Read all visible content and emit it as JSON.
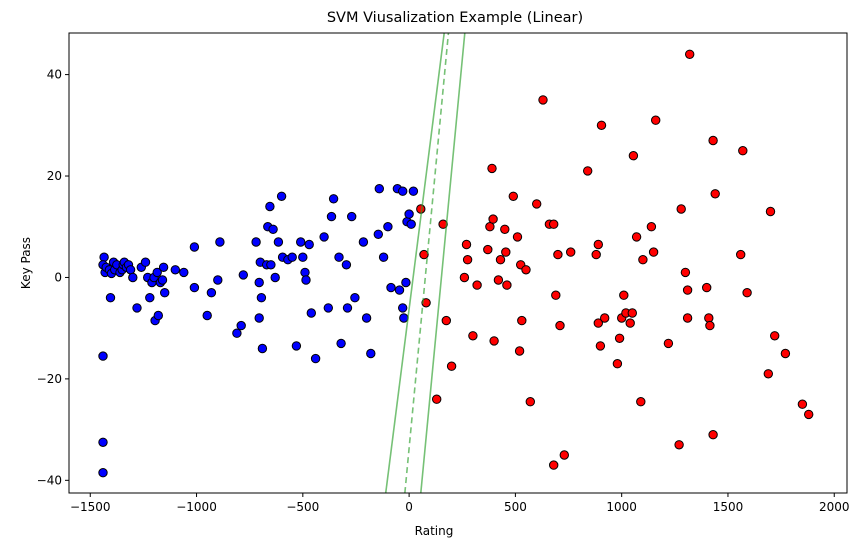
{
  "chart_data": {
    "type": "scatter",
    "title": "SVM Viusalization Example (Linear)",
    "xlabel": "Rating",
    "ylabel": "Key Pass",
    "xlim": [
      -1600,
      2060
    ],
    "ylim": [
      -42.5,
      48.2
    ],
    "xticks": [
      -1500,
      -1000,
      -500,
      0,
      500,
      1000,
      1500,
      2000
    ],
    "xtick_labels": [
      "−1500",
      "−1000",
      "−500",
      "0",
      "500",
      "1000",
      "1500",
      "2000"
    ],
    "yticks": [
      -40,
      -20,
      0,
      20,
      40
    ],
    "ytick_labels": [
      "−40",
      "−20",
      "0",
      "20",
      "40"
    ],
    "grid": false,
    "series": [
      {
        "color": "#0000ff",
        "points": [
          [
            -1435,
            4
          ],
          [
            -1440,
            2.5
          ],
          [
            -1430,
            1
          ],
          [
            -1425,
            2
          ],
          [
            -1410,
            1.5
          ],
          [
            -1400,
            0.8
          ],
          [
            -1390,
            3
          ],
          [
            -1385,
            1.5
          ],
          [
            -1375,
            2.5
          ],
          [
            -1360,
            1
          ],
          [
            -1350,
            1.5
          ],
          [
            -1345,
            2.5
          ],
          [
            -1340,
            3
          ],
          [
            -1330,
            2
          ],
          [
            -1320,
            2.5
          ],
          [
            -1310,
            1.5
          ],
          [
            -1300,
            0
          ],
          [
            -1280,
            -6
          ],
          [
            -1260,
            2
          ],
          [
            -1240,
            3
          ],
          [
            -1230,
            0
          ],
          [
            -1220,
            -4
          ],
          [
            -1210,
            -1
          ],
          [
            -1200,
            0
          ],
          [
            -1195,
            -8.5
          ],
          [
            -1185,
            1
          ],
          [
            -1180,
            -7.5
          ],
          [
            -1170,
            -1
          ],
          [
            -1160,
            -0.5
          ],
          [
            -1155,
            2
          ],
          [
            -1150,
            -3
          ],
          [
            -1405,
            -4
          ],
          [
            -1440,
            -15.5
          ],
          [
            -1440,
            -32.5
          ],
          [
            -1440,
            -38.5
          ],
          [
            -1100,
            1.5
          ],
          [
            -1060,
            1
          ],
          [
            -1010,
            6
          ],
          [
            -1010,
            -2
          ],
          [
            -950,
            -7.5
          ],
          [
            -930,
            -3
          ],
          [
            -900,
            -0.5
          ],
          [
            -890,
            7
          ],
          [
            -810,
            -11
          ],
          [
            -780,
            0.5
          ],
          [
            -790,
            -9.5
          ],
          [
            -720,
            7
          ],
          [
            -705,
            -8
          ],
          [
            -705,
            -1
          ],
          [
            -695,
            -4
          ],
          [
            -700,
            3
          ],
          [
            -690,
            -14
          ],
          [
            -670,
            2.5
          ],
          [
            -665,
            10
          ],
          [
            -655,
            14
          ],
          [
            -650,
            2.5
          ],
          [
            -640,
            9.5
          ],
          [
            -630,
            0
          ],
          [
            -615,
            7
          ],
          [
            -600,
            16
          ],
          [
            -595,
            4
          ],
          [
            -570,
            3.5
          ],
          [
            -550,
            4
          ],
          [
            -530,
            -13.5
          ],
          [
            -510,
            7
          ],
          [
            -500,
            4
          ],
          [
            -490,
            1
          ],
          [
            -485,
            -0.5
          ],
          [
            -470,
            6.5
          ],
          [
            -460,
            -7
          ],
          [
            -440,
            -16
          ],
          [
            -400,
            8
          ],
          [
            -380,
            -6
          ],
          [
            -365,
            12
          ],
          [
            -355,
            15.5
          ],
          [
            -330,
            4
          ],
          [
            -320,
            -13
          ],
          [
            -295,
            2.5
          ],
          [
            -290,
            -6
          ],
          [
            -270,
            12
          ],
          [
            -255,
            -4
          ],
          [
            -215,
            7
          ],
          [
            -200,
            -8
          ],
          [
            -180,
            -15
          ],
          [
            -145,
            8.5
          ],
          [
            -140,
            17.5
          ],
          [
            -120,
            4
          ],
          [
            -100,
            10
          ],
          [
            -85,
            -2
          ],
          [
            -55,
            17.5
          ],
          [
            -30,
            17
          ],
          [
            -30,
            -6
          ],
          [
            -25,
            -8
          ],
          [
            -15,
            -1
          ],
          [
            -10,
            11
          ],
          [
            0,
            12.5
          ],
          [
            10,
            10.5
          ],
          [
            20,
            17
          ],
          [
            -45,
            -2.5
          ]
        ]
      },
      {
        "color": "#ff0000",
        "points": [
          [
            55,
            13.5
          ],
          [
            70,
            4.5
          ],
          [
            80,
            -5
          ],
          [
            130,
            -24
          ],
          [
            160,
            10.5
          ],
          [
            175,
            -8.5
          ],
          [
            200,
            -17.5
          ],
          [
            260,
            0
          ],
          [
            270,
            6.5
          ],
          [
            275,
            3.5
          ],
          [
            300,
            -11.5
          ],
          [
            320,
            -1.5
          ],
          [
            370,
            5.5
          ],
          [
            380,
            10
          ],
          [
            390,
            21.5
          ],
          [
            395,
            11.5
          ],
          [
            400,
            -12.5
          ],
          [
            420,
            -0.5
          ],
          [
            430,
            3.5
          ],
          [
            450,
            9.5
          ],
          [
            455,
            5
          ],
          [
            460,
            -1.5
          ],
          [
            490,
            16
          ],
          [
            510,
            8
          ],
          [
            520,
            -14.5
          ],
          [
            525,
            2.5
          ],
          [
            530,
            -8.5
          ],
          [
            550,
            1.5
          ],
          [
            570,
            -24.5
          ],
          [
            600,
            14.5
          ],
          [
            630,
            35
          ],
          [
            660,
            10.5
          ],
          [
            680,
            10.5
          ],
          [
            690,
            -3.5
          ],
          [
            680,
            -37
          ],
          [
            700,
            4.5
          ],
          [
            710,
            -9.5
          ],
          [
            730,
            -35
          ],
          [
            760,
            5
          ],
          [
            840,
            21
          ],
          [
            880,
            4.5
          ],
          [
            890,
            -9
          ],
          [
            890,
            6.5
          ],
          [
            900,
            -13.5
          ],
          [
            905,
            30
          ],
          [
            920,
            -8
          ],
          [
            980,
            -17
          ],
          [
            990,
            -12
          ],
          [
            1000,
            -8
          ],
          [
            1010,
            -3.5
          ],
          [
            1020,
            -7
          ],
          [
            1040,
            -9
          ],
          [
            1050,
            -7
          ],
          [
            1055,
            24
          ],
          [
            1070,
            8
          ],
          [
            1090,
            -24.5
          ],
          [
            1100,
            3.5
          ],
          [
            1140,
            10
          ],
          [
            1150,
            5
          ],
          [
            1160,
            31
          ],
          [
            1220,
            -13
          ],
          [
            1270,
            -33
          ],
          [
            1280,
            13.5
          ],
          [
            1300,
            1
          ],
          [
            1310,
            -2.5
          ],
          [
            1310,
            -8
          ],
          [
            1320,
            44
          ],
          [
            1400,
            -2
          ],
          [
            1410,
            -8
          ],
          [
            1415,
            -9.5
          ],
          [
            1430,
            27
          ],
          [
            1430,
            -31
          ],
          [
            1440,
            16.5
          ],
          [
            1560,
            4.5
          ],
          [
            1570,
            25
          ],
          [
            1590,
            -3
          ],
          [
            1690,
            -19
          ],
          [
            1700,
            13
          ],
          [
            1720,
            -11.5
          ],
          [
            1770,
            -15
          ],
          [
            1850,
            -25
          ],
          [
            1880,
            -27
          ]
        ]
      }
    ],
    "decision_boundary": {
      "color": "#2ca02c",
      "solid_margins": [
        [
          [
            -110,
            -42.5
          ],
          [
            165,
            48.2
          ]
        ],
        [
          [
            55,
            -42.5
          ],
          [
            262,
            48.2
          ]
        ]
      ],
      "dashed_center": [
        [
          -20,
          -42.5
        ],
        [
          185,
          48.2
        ]
      ]
    }
  }
}
